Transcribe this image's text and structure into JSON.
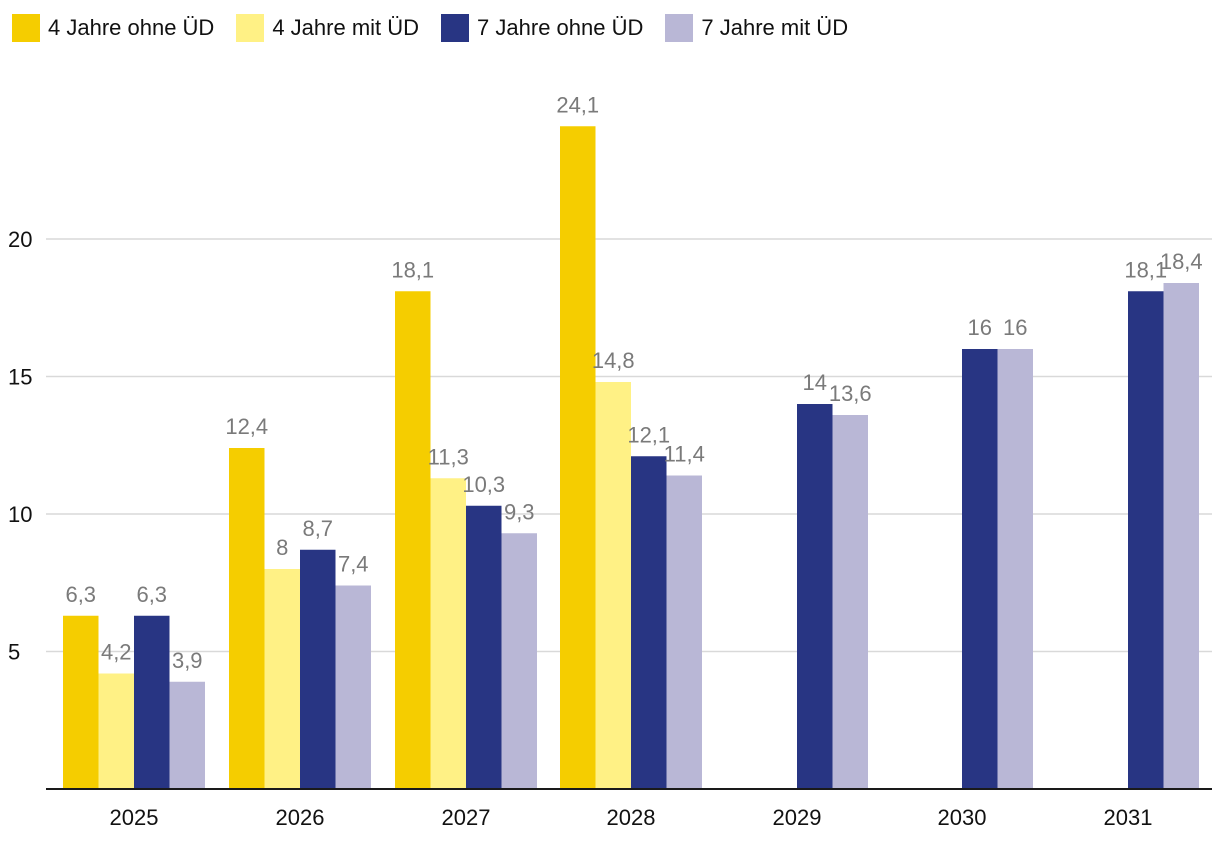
{
  "chart_data": {
    "type": "bar",
    "title": "",
    "xlabel": "",
    "ylabel": "",
    "categories": [
      "2025",
      "2026",
      "2027",
      "2028",
      "2029",
      "2030",
      "2031"
    ],
    "series": [
      {
        "name": "4 Jahre ohne ÜD",
        "color": "#f5cd00",
        "values": [
          6.3,
          12.4,
          18.1,
          24.1,
          null,
          null,
          null
        ],
        "labels": [
          "6,3",
          "12,4",
          "18,1",
          "24,1",
          "",
          "",
          ""
        ]
      },
      {
        "name": "4 Jahre mit ÜD",
        "color": "#fff185",
        "values": [
          4.2,
          8,
          11.3,
          14.8,
          null,
          null,
          null
        ],
        "labels": [
          "4,2",
          "8",
          "11,3",
          "14,8",
          "",
          "",
          ""
        ]
      },
      {
        "name": "7 Jahre ohne ÜD",
        "color": "#283583",
        "values": [
          6.3,
          8.7,
          10.3,
          12.1,
          14,
          16,
          18.1
        ],
        "labels": [
          "6,3",
          "8,7",
          "10,3",
          "12,1",
          "14",
          "16",
          "18,1"
        ]
      },
      {
        "name": "7 Jahre mit ÜD",
        "color": "#b9b7d6",
        "values": [
          3.9,
          7.4,
          9.3,
          11.4,
          13.6,
          16,
          18.4
        ],
        "labels": [
          "3,9",
          "7,4",
          "9,3",
          "11,4",
          "13,6",
          "16",
          "18,4"
        ]
      }
    ],
    "yticks": [
      5,
      10,
      15,
      20
    ],
    "ylim": [
      0,
      25
    ],
    "grid": true,
    "legend_position": "top-left",
    "label_color": "#7a7a7a",
    "grid_color": "#d9d9d9",
    "axis_color": "#1a1a1a"
  }
}
